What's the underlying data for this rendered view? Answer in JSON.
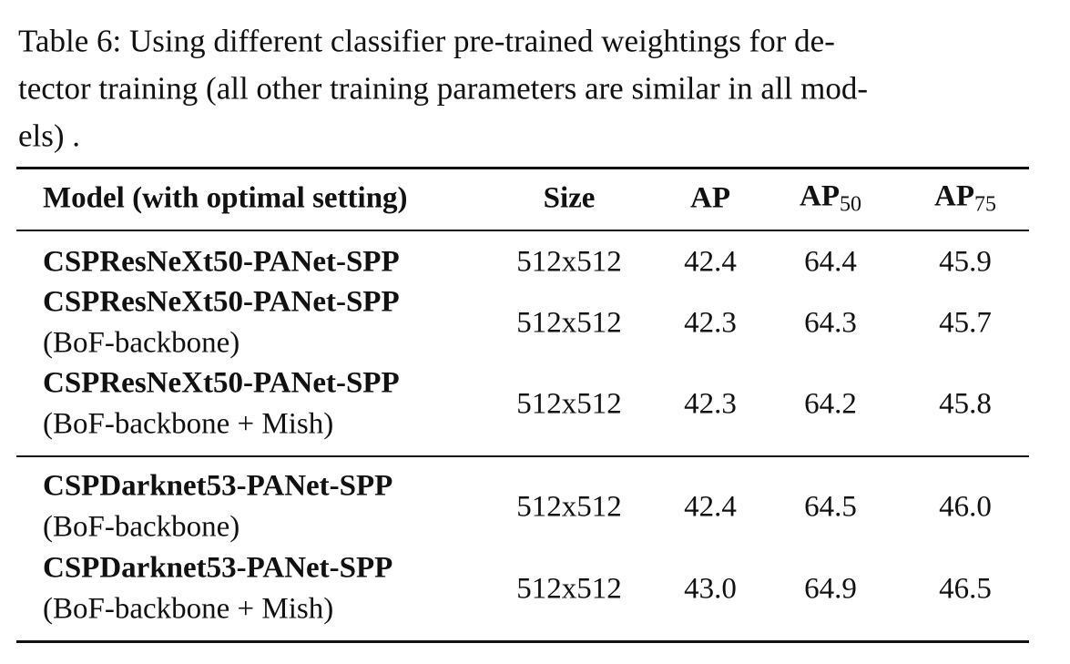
{
  "caption": {
    "lines": [
      "Table 6: Using different classifier pre-trained weightings for de-",
      "tector training (all other training parameters are similar in all mod-",
      "els) ."
    ]
  },
  "table": {
    "header": {
      "model": "Model (with optimal setting)",
      "size": "Size",
      "ap": "AP",
      "ap50": {
        "text": "AP",
        "sub": "50"
      },
      "ap75": {
        "text": "AP",
        "sub": "75"
      }
    },
    "groups": [
      {
        "rows": [
          {
            "model": "CSPResNeXt50-PANet-SPP",
            "size": "512x512",
            "ap": "42.4",
            "ap50": "64.4",
            "ap75": "45.9"
          },
          {
            "model": "CSPResNeXt50-PANet-SPP",
            "variant": "(BoF-backbone)",
            "size": "512x512",
            "ap": "42.3",
            "ap50": "64.3",
            "ap75": "45.7"
          },
          {
            "model": "CSPResNeXt50-PANet-SPP",
            "variant": "(BoF-backbone + Mish)",
            "size": "512x512",
            "ap": "42.3",
            "ap50": "64.2",
            "ap75": "45.8"
          }
        ]
      },
      {
        "rows": [
          {
            "model": "CSPDarknet53-PANet-SPP",
            "variant": "(BoF-backbone)",
            "size": "512x512",
            "ap": "42.4",
            "ap50": "64.5",
            "ap75": "46.0"
          },
          {
            "model": "CSPDarknet53-PANet-SPP",
            "variant": "(BoF-backbone + Mish)",
            "size": "512x512",
            "ap": "43.0",
            "ap50": "64.9",
            "ap75": "46.5"
          }
        ]
      }
    ]
  }
}
